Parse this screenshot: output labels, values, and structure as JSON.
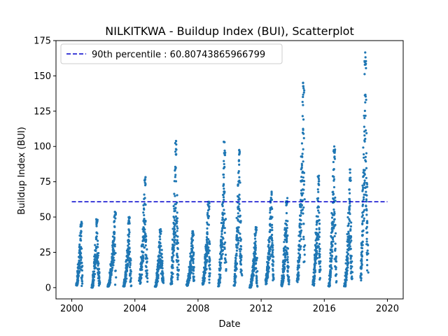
{
  "chart_data": {
    "type": "scatter",
    "title": "NILKITKWA - Buildup Index (BUI), Scatterplot",
    "xlabel": "Date",
    "ylabel": "Buildup Index (BUI)",
    "x_ticks": [
      "2000",
      "2004",
      "2008",
      "2012",
      "2016",
      "2020"
    ],
    "y_ticks": [
      "0",
      "25",
      "50",
      "75",
      "100",
      "125",
      "150",
      "175"
    ],
    "xlim": [
      1999.0,
      2021.0
    ],
    "ylim": [
      -8,
      175
    ],
    "grid": false,
    "legend_position": "top-left",
    "marker_color": "#1f77b4",
    "reference_line": {
      "label": "90th percentile : 60.80743865966799",
      "value": 60.80743865966799,
      "x_range": [
        2000.0,
        2020.0
      ],
      "color": "#0000cc",
      "style": "dashed"
    },
    "seasons": [
      {
        "year": 2000,
        "start": 2000.3,
        "end": 2000.65,
        "peak": 47,
        "start_value": 2,
        "end_value": 2
      },
      {
        "year": 2001,
        "start": 2001.28,
        "end": 2001.75,
        "peak": 49,
        "start_value": 0,
        "end_value": 2
      },
      {
        "year": 2002,
        "start": 2002.3,
        "end": 2002.78,
        "peak": 54,
        "start_value": 1,
        "end_value": 3
      },
      {
        "year": 2003,
        "start": 2003.3,
        "end": 2003.75,
        "peak": 51,
        "start_value": 1,
        "end_value": 2
      },
      {
        "year": 2004,
        "start": 2004.3,
        "end": 2004.78,
        "peak": 79,
        "start_value": 5,
        "end_value": 8
      },
      {
        "year": 2005,
        "start": 2005.3,
        "end": 2005.78,
        "peak": 42,
        "start_value": 1,
        "end_value": 5
      },
      {
        "year": 2006,
        "start": 2006.3,
        "end": 2006.75,
        "peak": 104,
        "start_value": 3,
        "end_value": 10
      },
      {
        "year": 2007,
        "start": 2007.3,
        "end": 2007.75,
        "peak": 40,
        "start_value": 2,
        "end_value": 5
      },
      {
        "year": 2008,
        "start": 2008.3,
        "end": 2008.75,
        "peak": 61,
        "start_value": 4,
        "end_value": 5
      },
      {
        "year": 2009,
        "start": 2009.3,
        "end": 2009.75,
        "peak": 104,
        "start_value": 1,
        "end_value": 15
      },
      {
        "year": 2010,
        "start": 2010.3,
        "end": 2010.75,
        "peak": 99,
        "start_value": 2,
        "end_value": 10
      },
      {
        "year": 2011,
        "start": 2011.3,
        "end": 2011.75,
        "peak": 43,
        "start_value": 0,
        "end_value": 1
      },
      {
        "year": 2012,
        "start": 2012.3,
        "end": 2012.78,
        "peak": 68,
        "start_value": 5,
        "end_value": 10
      },
      {
        "year": 2013,
        "start": 2013.3,
        "end": 2013.75,
        "peak": 64,
        "start_value": 2,
        "end_value": 3
      },
      {
        "year": 2014,
        "start": 2014.3,
        "end": 2014.75,
        "peak": 146,
        "start_value": 8,
        "end_value": 20
      },
      {
        "year": 2015,
        "start": 2015.3,
        "end": 2015.75,
        "peak": 80,
        "start_value": 3,
        "end_value": 10
      },
      {
        "year": 2016,
        "start": 2016.3,
        "end": 2016.75,
        "peak": 101,
        "start_value": 1,
        "end_value": 5
      },
      {
        "year": 2017,
        "start": 2017.3,
        "end": 2017.75,
        "peak": 84,
        "start_value": 1,
        "end_value": 8
      },
      {
        "year": 2018,
        "start": 2018.3,
        "end": 2018.75,
        "peak": 168,
        "start_value": 10,
        "end_value": 20
      }
    ]
  }
}
